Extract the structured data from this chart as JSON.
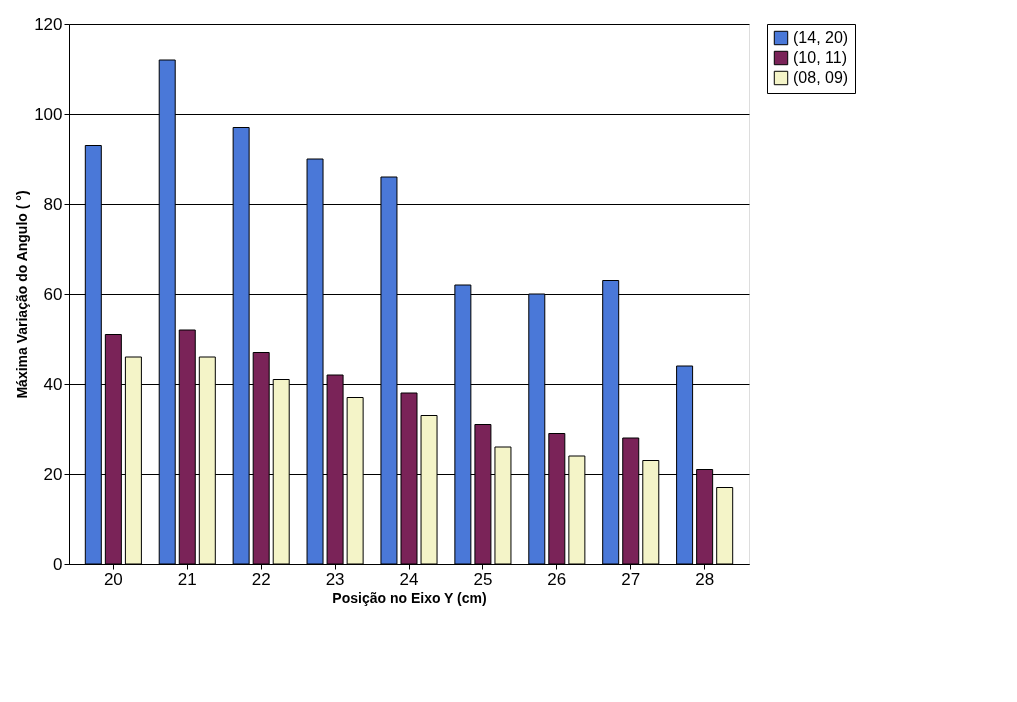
{
  "chart_data": {
    "type": "bar",
    "xlabel": "Posição no Eixo Y (cm)",
    "ylabel": "Máxima Variação do Angulo ( °)",
    "categories": [
      "20",
      "21",
      "22",
      "23",
      "24",
      "25",
      "26",
      "27",
      "28"
    ],
    "series": [
      {
        "name": "(14, 20)",
        "color": "#4a78d8",
        "values": [
          93,
          112,
          97,
          90,
          86,
          62,
          60,
          63,
          44
        ]
      },
      {
        "name": "(10, 11)",
        "color": "#7a2358",
        "values": [
          51,
          52,
          47,
          42,
          38,
          31,
          29,
          28,
          21
        ]
      },
      {
        "name": "(08, 09)",
        "color": "#f4f4c8",
        "values": [
          46,
          46,
          41,
          37,
          33,
          26,
          24,
          23,
          17
        ]
      }
    ],
    "ylim": [
      0,
      120
    ],
    "yticks": [
      0,
      20,
      40,
      60,
      80,
      100,
      120
    ],
    "grid": "y",
    "legend": "right"
  }
}
